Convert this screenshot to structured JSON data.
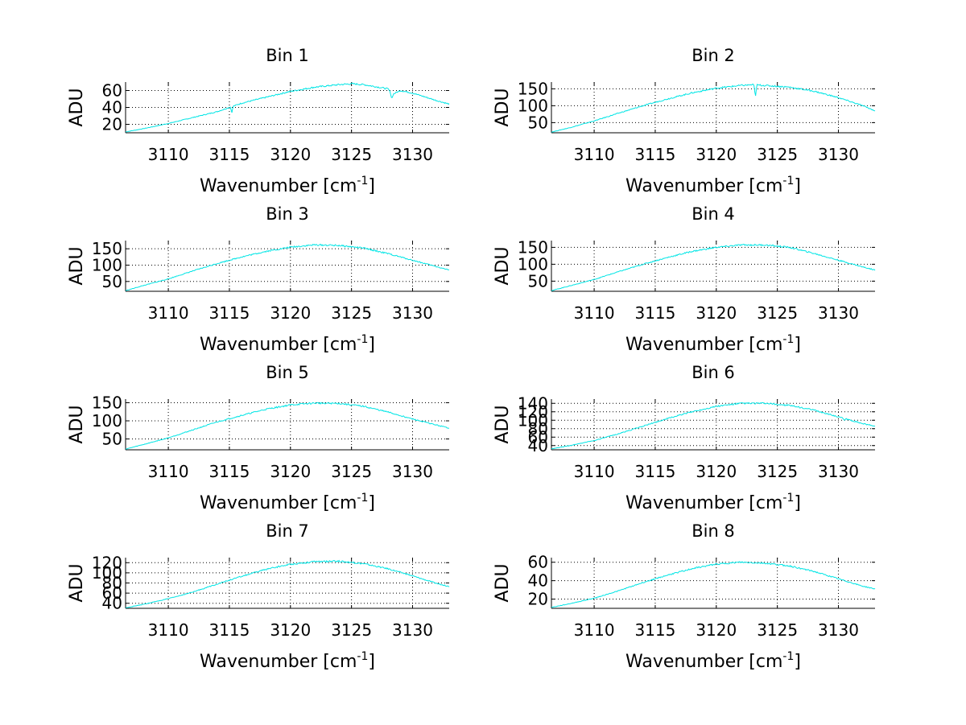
{
  "figure": {
    "background": "#ffffff",
    "line_color": "#00e5e5"
  },
  "chart_data": [
    {
      "type": "line",
      "title": "Bin 1",
      "xlabel_main": "Wavenumber [cm",
      "xlabel_sup": "-1",
      "xlabel_close": "]",
      "ylabel": "ADU",
      "xlim": [
        3106.5,
        3133
      ],
      "ylim": [
        10,
        70
      ],
      "xticks": [
        3110,
        3115,
        3120,
        3125,
        3130
      ],
      "yticks": [
        20,
        40,
        60
      ],
      "grid": true,
      "series": [
        {
          "x": [
            3106.5,
            3108,
            3110,
            3112,
            3114,
            3115,
            3116,
            3118,
            3120,
            3122,
            3124,
            3125,
            3126,
            3128,
            3128.3,
            3129,
            3130,
            3132,
            3133
          ],
          "y": [
            11,
            15,
            21,
            28,
            35,
            40,
            45,
            52,
            59,
            64,
            67,
            68,
            67,
            62,
            55,
            60,
            57,
            48,
            44
          ],
          "dips": [
            [
              3115.2,
              34
            ],
            [
              3128.3,
              50
            ]
          ]
        }
      ]
    },
    {
      "type": "line",
      "title": "Bin 2",
      "xlabel_main": "Wavenumber [cm",
      "xlabel_sup": "-1",
      "xlabel_close": "]",
      "ylabel": "ADU",
      "xlim": [
        3106.5,
        3133
      ],
      "ylim": [
        20,
        170
      ],
      "xticks": [
        3110,
        3115,
        3120,
        3125,
        3130
      ],
      "yticks": [
        50,
        100,
        150
      ],
      "grid": true,
      "series": [
        {
          "x": [
            3106.5,
            3108,
            3110,
            3112,
            3114,
            3116,
            3118,
            3120,
            3122,
            3123,
            3124,
            3126,
            3128,
            3130,
            3132,
            3133
          ],
          "y": [
            22,
            35,
            55,
            78,
            100,
            120,
            138,
            152,
            160,
            162,
            160,
            155,
            143,
            124,
            100,
            85
          ],
          "dips": [
            [
              3123.2,
              125
            ]
          ]
        }
      ]
    },
    {
      "type": "line",
      "title": "Bin 3",
      "xlabel_main": "Wavenumber [cm",
      "xlabel_sup": "-1",
      "xlabel_close": "]",
      "ylabel": "ADU",
      "xlim": [
        3106.5,
        3133
      ],
      "ylim": [
        20,
        175
      ],
      "xticks": [
        3110,
        3115,
        3120,
        3125,
        3130
      ],
      "yticks": [
        50,
        100,
        150
      ],
      "grid": true,
      "series": [
        {
          "x": [
            3106.5,
            3108,
            3110,
            3112,
            3114,
            3116,
            3118,
            3120,
            3122,
            3124,
            3126,
            3128,
            3130,
            3132,
            3133
          ],
          "y": [
            22,
            38,
            58,
            82,
            105,
            125,
            142,
            155,
            162,
            160,
            152,
            135,
            115,
            95,
            85
          ],
          "dips": []
        }
      ]
    },
    {
      "type": "line",
      "title": "Bin 4",
      "xlabel_main": "Wavenumber [cm",
      "xlabel_sup": "-1",
      "xlabel_close": "]",
      "ylabel": "ADU",
      "xlim": [
        3106.5,
        3133
      ],
      "ylim": [
        20,
        170
      ],
      "xticks": [
        3110,
        3115,
        3120,
        3125,
        3130
      ],
      "yticks": [
        50,
        100,
        150
      ],
      "grid": true,
      "series": [
        {
          "x": [
            3106.5,
            3108,
            3110,
            3112,
            3114,
            3116,
            3118,
            3120,
            3122,
            3124,
            3126,
            3128,
            3130,
            3132,
            3133
          ],
          "y": [
            22,
            36,
            55,
            78,
            100,
            120,
            138,
            150,
            157,
            157,
            150,
            132,
            112,
            92,
            83
          ],
          "dips": []
        }
      ]
    },
    {
      "type": "line",
      "title": "Bin 5",
      "xlabel_main": "Wavenumber [cm",
      "xlabel_sup": "-1",
      "xlabel_close": "]",
      "ylabel": "ADU",
      "xlim": [
        3106.5,
        3133
      ],
      "ylim": [
        20,
        160
      ],
      "xticks": [
        3110,
        3115,
        3120,
        3125,
        3130
      ],
      "yticks": [
        50,
        100,
        150
      ],
      "grid": true,
      "series": [
        {
          "x": [
            3106.5,
            3108,
            3110,
            3112,
            3114,
            3116,
            3118,
            3120,
            3122,
            3124,
            3126,
            3128,
            3130,
            3132,
            3133
          ],
          "y": [
            22,
            35,
            53,
            75,
            97,
            115,
            132,
            144,
            149,
            148,
            140,
            124,
            105,
            88,
            80
          ],
          "dips": []
        }
      ]
    },
    {
      "type": "line",
      "title": "Bin 6",
      "xlabel_main": "Wavenumber [cm",
      "xlabel_sup": "-1",
      "xlabel_close": "]",
      "ylabel": "ADU",
      "xlim": [
        3106.5,
        3133
      ],
      "ylim": [
        30,
        150
      ],
      "xticks": [
        3110,
        3115,
        3120,
        3125,
        3130
      ],
      "yticks": [
        40,
        60,
        80,
        100,
        120,
        140
      ],
      "ytick_labels": [
        "40",
        "60",
        "80",
        "100",
        "120",
        "140"
      ],
      "grid": true,
      "series": [
        {
          "x": [
            3106.5,
            3108,
            3110,
            3112,
            3114,
            3116,
            3118,
            3120,
            3122,
            3124,
            3126,
            3128,
            3130,
            3132,
            3133
          ],
          "y": [
            32,
            40,
            52,
            68,
            86,
            104,
            120,
            133,
            140,
            140,
            135,
            124,
            108,
            92,
            86
          ],
          "dips": [
            [
              3130.5,
              100
            ]
          ]
        }
      ]
    },
    {
      "type": "line",
      "title": "Bin 7",
      "xlabel_main": "Wavenumber [cm",
      "xlabel_sup": "-1",
      "xlabel_close": "]",
      "ylabel": "ADU",
      "xlim": [
        3106.5,
        3133
      ],
      "ylim": [
        30,
        130
      ],
      "xticks": [
        3110,
        3115,
        3120,
        3125,
        3130
      ],
      "yticks": [
        40,
        60,
        80,
        100,
        120
      ],
      "ytick_labels": [
        "40",
        "60",
        "80",
        "100",
        "120"
      ],
      "grid": true,
      "series": [
        {
          "x": [
            3106.5,
            3108,
            3110,
            3112,
            3114,
            3116,
            3118,
            3120,
            3122,
            3124,
            3126,
            3128,
            3130,
            3132,
            3133
          ],
          "y": [
            31,
            38,
            49,
            62,
            78,
            93,
            107,
            117,
            122,
            123,
            118,
            108,
            94,
            79,
            73
          ],
          "dips": []
        }
      ]
    },
    {
      "type": "line",
      "title": "Bin 8",
      "xlabel_main": "Wavenumber [cm",
      "xlabel_sup": "-1",
      "xlabel_close": "]",
      "ylabel": "ADU",
      "xlim": [
        3106.5,
        3133
      ],
      "ylim": [
        10,
        65
      ],
      "xticks": [
        3110,
        3115,
        3120,
        3125,
        3130
      ],
      "yticks": [
        20,
        40,
        60
      ],
      "grid": true,
      "series": [
        {
          "x": [
            3106.5,
            3108,
            3110,
            3112,
            3114,
            3116,
            3118,
            3120,
            3122,
            3124,
            3126,
            3128,
            3130,
            3132,
            3133
          ],
          "y": [
            11,
            15,
            21,
            29,
            38,
            46,
            53,
            58,
            60,
            59,
            56,
            50,
            42,
            34,
            31
          ],
          "dips": [
            [
              3117.4,
              50
            ]
          ]
        }
      ]
    }
  ]
}
